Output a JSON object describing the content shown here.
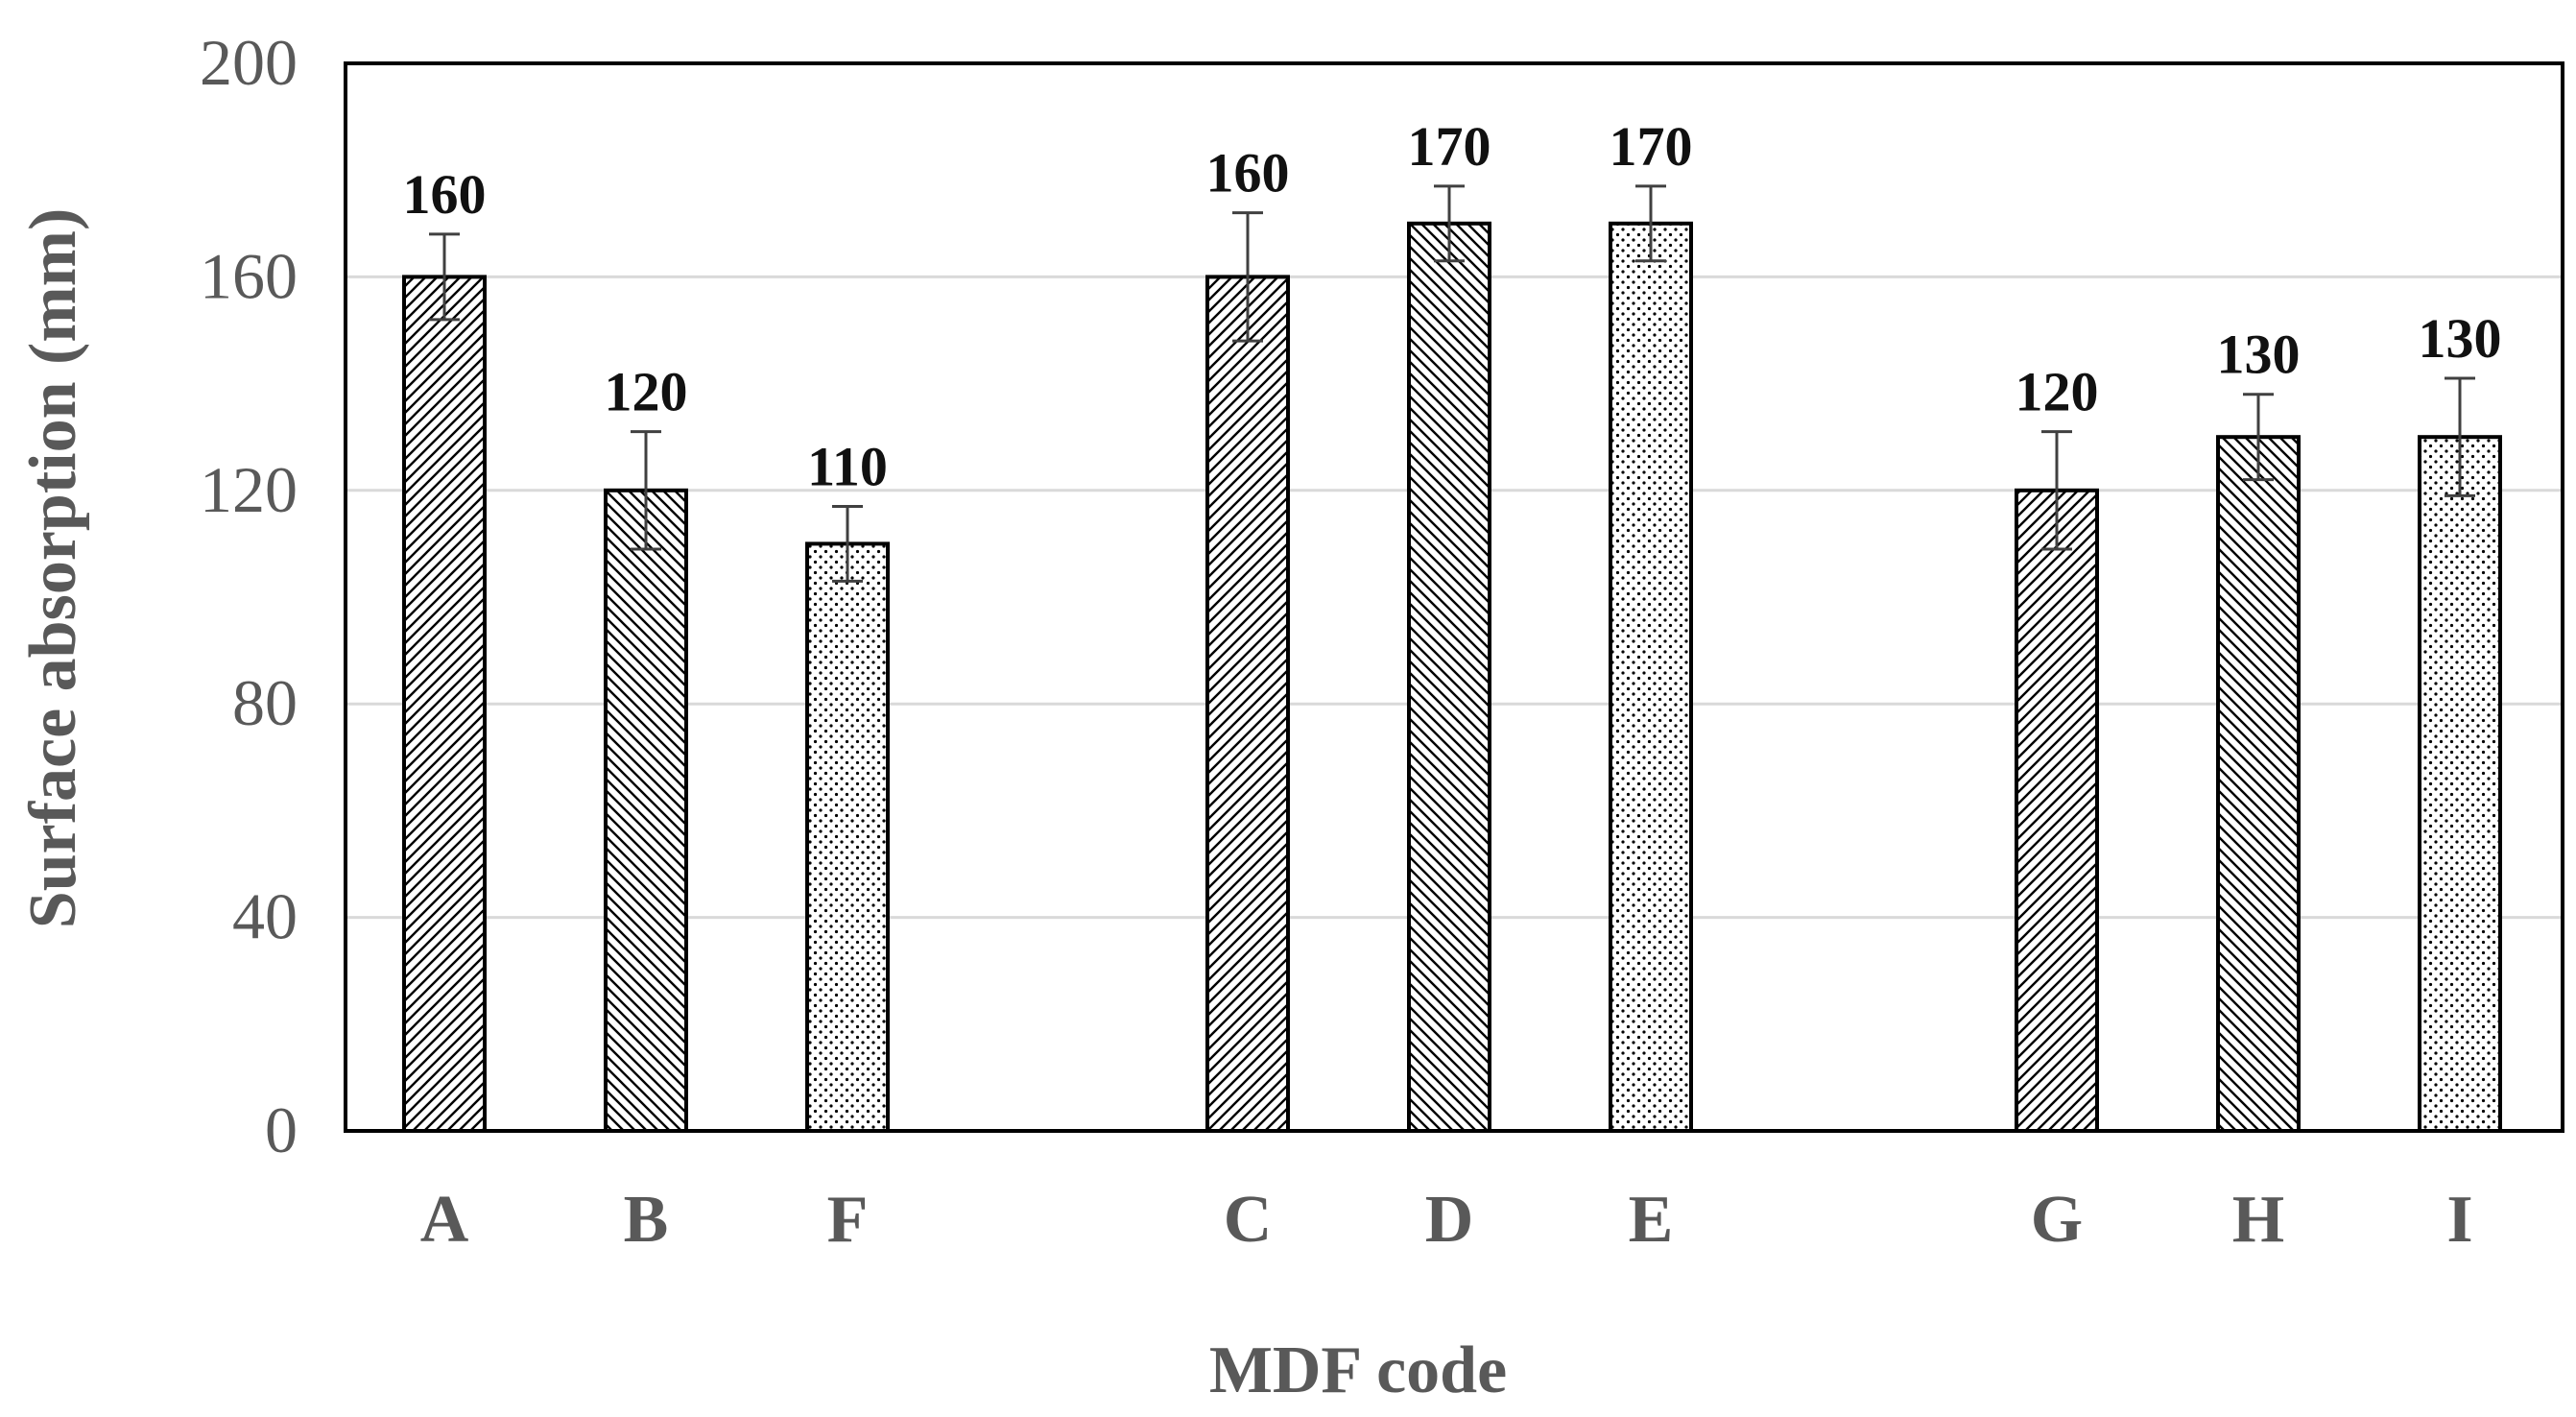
{
  "chart_data": {
    "type": "bar",
    "title": "",
    "xlabel": "MDF code",
    "ylabel": "Surface absorption (mm)",
    "ylim": [
      0,
      200
    ],
    "yticks": [
      0,
      40,
      80,
      120,
      160,
      200
    ],
    "grid": true,
    "legend": "none",
    "groups": [
      {
        "categories": [
          "A",
          "B",
          "F"
        ]
      },
      {
        "categories": [
          "C",
          "D",
          "E"
        ]
      },
      {
        "categories": [
          "G",
          "H",
          "I"
        ]
      }
    ],
    "categories": [
      "A",
      "B",
      "F",
      "C",
      "D",
      "E",
      "G",
      "H",
      "I"
    ],
    "values": [
      160,
      120,
      110,
      160,
      170,
      170,
      120,
      130,
      130
    ],
    "value_labels": [
      "160",
      "120",
      "110",
      "160",
      "170",
      "170",
      "120",
      "130",
      "130"
    ],
    "error": [
      8,
      11,
      7,
      12,
      7,
      7,
      11,
      8,
      11
    ],
    "patterns": [
      "diag-right",
      "diag-left",
      "dots",
      "diag-right",
      "diag-left",
      "dots",
      "diag-right",
      "diag-left",
      "dots"
    ],
    "colors": {
      "bar_stroke": "#000000",
      "grid": "#d9d9d9",
      "text": "#595959",
      "label": "#111111"
    }
  }
}
